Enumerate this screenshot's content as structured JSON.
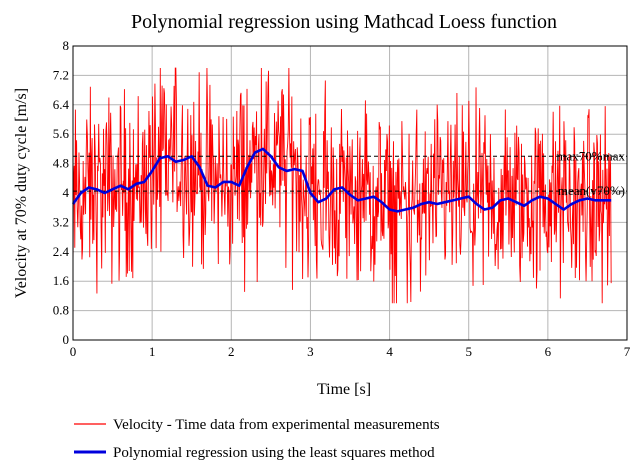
{
  "chart_data": {
    "type": "line",
    "title": "Polynomial regression using Mathcad Loess function",
    "xlabel": "Time [s]",
    "ylabel": "Velocity at 70% duty cycle [m/s]",
    "xlim": [
      0,
      7
    ],
    "ylim": [
      0,
      8
    ],
    "xticks": [
      "0",
      "1",
      "2",
      "3",
      "4",
      "5",
      "6",
      "7"
    ],
    "yticks": [
      "0",
      "0.8",
      "1.6",
      "2.4",
      "3.2",
      "4",
      "4.8",
      "5.6",
      "6.4",
      "7.2",
      "8"
    ],
    "grid": true,
    "legend_position": "bottom",
    "series": [
      {
        "name": "Velocity - Time data from experimental measurements",
        "color": "#ff0000",
        "style": "thin noisy line",
        "x_range": [
          0,
          6.8
        ],
        "approx_range": [
          1.0,
          7.4
        ],
        "trend_x": [
          0,
          0.2,
          0.4,
          0.6,
          0.8,
          1.0,
          1.2,
          1.4,
          1.6,
          1.8,
          2.0,
          2.2,
          2.4,
          2.6,
          2.8,
          3.0,
          3.2,
          3.4,
          3.6,
          3.8,
          4.0,
          4.2,
          4.4,
          4.6,
          4.8,
          5.0,
          5.2,
          5.4,
          5.6,
          5.8,
          6.0,
          6.2,
          6.4,
          6.6,
          6.8
        ],
        "trend_y": [
          3.7,
          4.1,
          4.05,
          4.2,
          4.25,
          4.6,
          5.0,
          4.95,
          4.6,
          4.2,
          4.3,
          4.6,
          5.2,
          4.7,
          4.6,
          4.0,
          3.9,
          4.1,
          3.85,
          3.8,
          3.55,
          3.55,
          3.7,
          3.7,
          3.85,
          3.85,
          3.6,
          3.7,
          3.85,
          3.7,
          3.85,
          3.65,
          3.7,
          3.8,
          3.8
        ],
        "noise_amplitude": 1.25
      },
      {
        "name": "Polynomial regression using the least squares method",
        "color": "#0000dd",
        "style": "thick line",
        "x": [
          0,
          0.1,
          0.2,
          0.3,
          0.4,
          0.5,
          0.6,
          0.7,
          0.8,
          0.9,
          1.0,
          1.1,
          1.2,
          1.3,
          1.4,
          1.5,
          1.6,
          1.7,
          1.8,
          1.9,
          2.0,
          2.1,
          2.2,
          2.3,
          2.4,
          2.5,
          2.6,
          2.7,
          2.8,
          2.9,
          3.0,
          3.1,
          3.2,
          3.3,
          3.4,
          3.5,
          3.6,
          3.7,
          3.8,
          3.9,
          4.0,
          4.1,
          4.2,
          4.3,
          4.4,
          4.5,
          4.6,
          4.7,
          4.8,
          4.9,
          5.0,
          5.1,
          5.2,
          5.3,
          5.4,
          5.5,
          5.6,
          5.7,
          5.8,
          5.9,
          6.0,
          6.1,
          6.2,
          6.3,
          6.4,
          6.5,
          6.6,
          6.7,
          6.8
        ],
        "y": [
          3.7,
          4.0,
          4.15,
          4.1,
          4.0,
          4.1,
          4.2,
          4.1,
          4.25,
          4.3,
          4.6,
          4.95,
          5.0,
          4.85,
          4.9,
          5.0,
          4.7,
          4.2,
          4.15,
          4.3,
          4.3,
          4.2,
          4.7,
          5.1,
          5.2,
          5.0,
          4.7,
          4.6,
          4.65,
          4.6,
          4.0,
          3.75,
          3.85,
          4.1,
          4.15,
          3.95,
          3.8,
          3.85,
          3.9,
          3.75,
          3.55,
          3.5,
          3.55,
          3.6,
          3.7,
          3.75,
          3.7,
          3.75,
          3.8,
          3.85,
          3.9,
          3.7,
          3.55,
          3.6,
          3.8,
          3.85,
          3.75,
          3.65,
          3.8,
          3.9,
          3.85,
          3.7,
          3.55,
          3.7,
          3.8,
          3.85,
          3.8,
          3.8,
          3.8
        ]
      }
    ],
    "reference_lines": [
      {
        "value": 5.0,
        "label": "max70%max",
        "style": "dashed",
        "color": "#000000"
      },
      {
        "value": 4.05,
        "label": "mean(v70%)",
        "style": "dashed",
        "color": "#000000"
      }
    ]
  }
}
